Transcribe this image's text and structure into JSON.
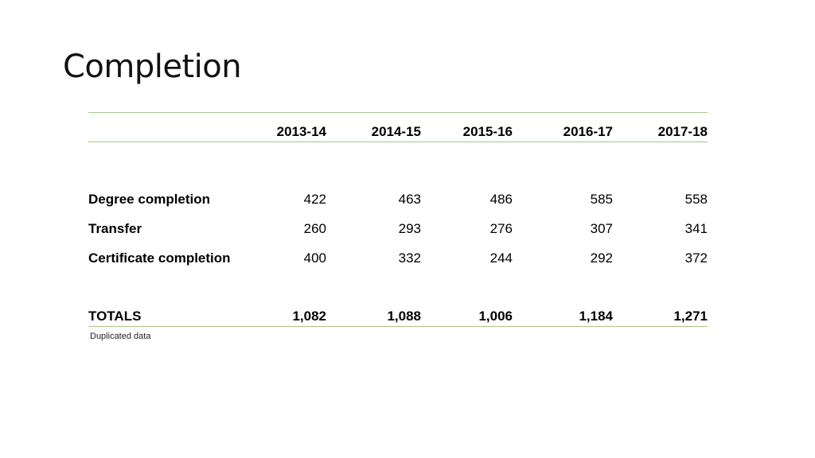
{
  "slide": {
    "title": "Completion",
    "footnote": "Duplicated data"
  },
  "table": {
    "columns": [
      "2013-14",
      "2014-15",
      "2015-16",
      "2016-17",
      "2017-18"
    ],
    "rows": [
      {
        "label": "Degree completion",
        "values": [
          "422",
          "463",
          "486",
          "585",
          "558"
        ]
      },
      {
        "label": "Transfer",
        "values": [
          "260",
          "293",
          "276",
          "307",
          "341"
        ]
      },
      {
        "label": "Certificate completion",
        "values": [
          "400",
          "332",
          "244",
          "292",
          "372"
        ]
      }
    ],
    "totals": {
      "label": "TOTALS",
      "values": [
        "1,082",
        "1,088",
        "1,006",
        "1,184",
        "1,271"
      ]
    }
  },
  "colors": {
    "rule": "#a6c78a",
    "text": "#000000"
  }
}
